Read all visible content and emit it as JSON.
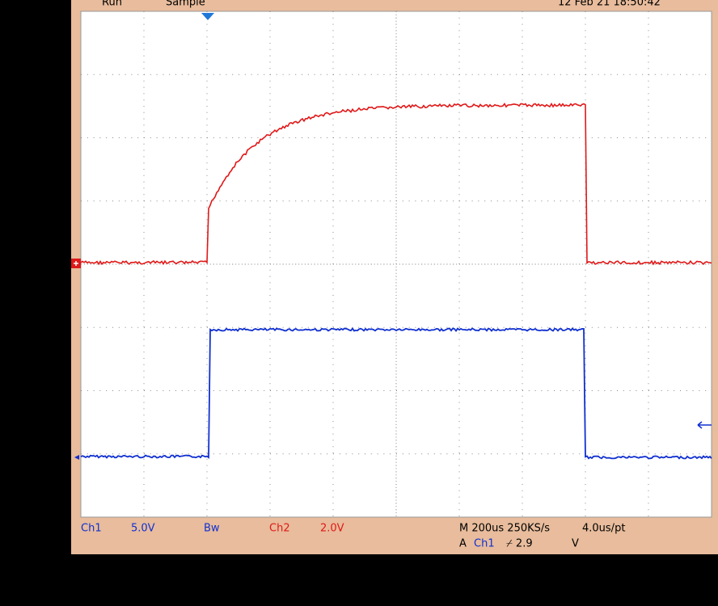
{
  "top_bar": {
    "status": "Run",
    "mode": "Sample",
    "datetime": "12 Feb 21 18:50:42"
  },
  "bottom_bar": {
    "ch1_label": "Ch1",
    "ch1_scale": "5.0V",
    "bandwidth": "Bw",
    "ch2_label": "Ch2",
    "ch2_scale": "2.0V",
    "timebase": "M 200us 250KS/s",
    "resolution": "4.0us/pt",
    "trigger_prefix": "A",
    "trigger_source": "Ch1",
    "trigger_level": "⌿ 2.9",
    "trigger_unit": "V"
  }
}
